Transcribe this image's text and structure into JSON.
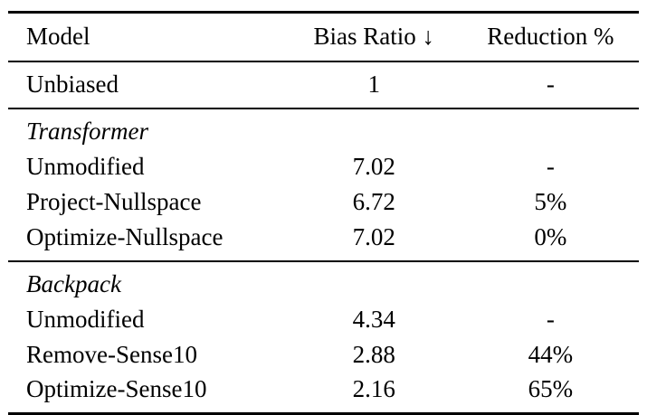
{
  "table": {
    "columns": [
      "Model",
      "Bias Ratio ↓",
      "Reduction %"
    ],
    "groups": [
      {
        "label": "",
        "rows": [
          [
            "Unbiased",
            "1",
            "-"
          ]
        ]
      },
      {
        "label": "Transformer",
        "rows": [
          [
            "Unmodified",
            "7.02",
            "-"
          ],
          [
            "Project-Nullspace",
            "6.72",
            "5%"
          ],
          [
            "Optimize-Nullspace",
            "7.02",
            "0%"
          ]
        ]
      },
      {
        "label": "Backpack",
        "rows": [
          [
            "Unmodified",
            "4.34",
            "-"
          ],
          [
            "Remove-Sense10",
            "2.88",
            "44%"
          ],
          [
            "Optimize-Sense10",
            "2.16",
            "65%"
          ]
        ]
      }
    ]
  }
}
